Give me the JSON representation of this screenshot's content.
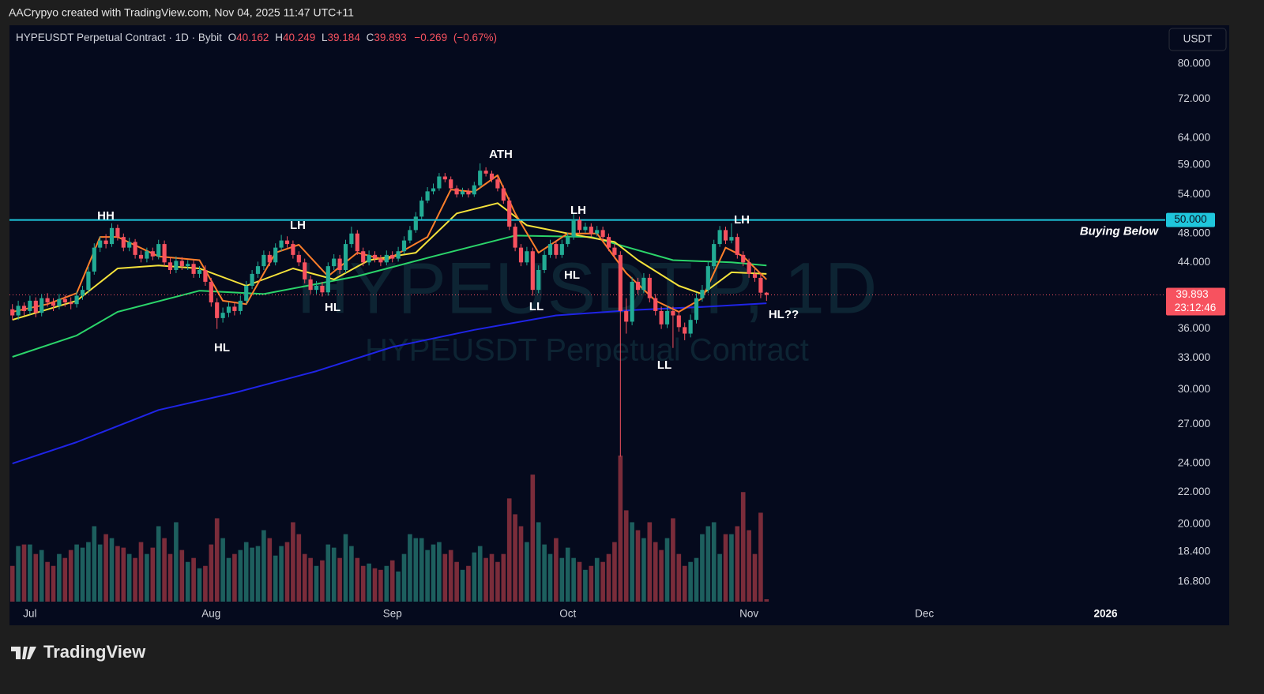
{
  "header": {
    "text": "AACrypyo created with TradingView.com, Nov 04, 2025 11:47 UTC+11"
  },
  "chart_data": {
    "type": "candlestick",
    "symbol": "HYPEUSDT Perpetual Contract · 1D · Bybit",
    "ohlc_legend": {
      "names": [
        "O",
        "H",
        "L",
        "C"
      ],
      "values": [
        40.162,
        40.249,
        39.184,
        39.893
      ]
    },
    "change": {
      "value": -0.269,
      "label": "−0.269"
    },
    "change_percent": {
      "value": -0.67,
      "label": "(−0.67%)"
    },
    "currency": "USDT",
    "watermark": [
      "HYPEUSDT.P, 1D",
      "HYPEUSDT Perpetual Contract"
    ],
    "up_color": "#22ab94",
    "down_color": "#f7525f",
    "volume_up_color": "#1d5f5e",
    "volume_down_color": "#7a2c3a",
    "x": [
      -3,
      -2,
      -1,
      0,
      1,
      2,
      3,
      4,
      5,
      6,
      7,
      8,
      9,
      10,
      11,
      12,
      13,
      14,
      15,
      16,
      17,
      18,
      19,
      20,
      21,
      22,
      23,
      24,
      25,
      26,
      27,
      28,
      29,
      30,
      31,
      32,
      33,
      34,
      35,
      36,
      37,
      38,
      39,
      40,
      41,
      42,
      43,
      44,
      45,
      46,
      47,
      48,
      49,
      50,
      51,
      52,
      53,
      54,
      55,
      56,
      57,
      58,
      59,
      60,
      61,
      62,
      63,
      64,
      65,
      66,
      67,
      68,
      69,
      70,
      71,
      72,
      73,
      74,
      75,
      76,
      77,
      78,
      79,
      80,
      81,
      82,
      83,
      84,
      85,
      86,
      87,
      88,
      89,
      90,
      91,
      92,
      93,
      94,
      95,
      96,
      97,
      98,
      99,
      100,
      101,
      102,
      103,
      104,
      105,
      106,
      107,
      108,
      109,
      110,
      111,
      112,
      113,
      114,
      115,
      116,
      117,
      118,
      119,
      120,
      121,
      122,
      123,
      124,
      125,
      126
    ],
    "ohlc": [
      [
        38.2,
        38.8,
        37.0,
        37.5
      ],
      [
        37.5,
        39.2,
        37.0,
        38.6
      ],
      [
        38.6,
        39.0,
        37.5,
        38.0
      ],
      [
        38.0,
        39.8,
        37.6,
        39.2
      ],
      [
        39.2,
        39.6,
        37.3,
        37.8
      ],
      [
        37.8,
        40.0,
        37.4,
        39.5
      ],
      [
        39.5,
        40.1,
        38.5,
        39.0
      ],
      [
        39.0,
        39.5,
        38.0,
        38.6
      ],
      [
        38.6,
        40.0,
        38.2,
        39.4
      ],
      [
        39.4,
        39.9,
        38.5,
        39.0
      ],
      [
        39.0,
        39.6,
        38.2,
        38.8
      ],
      [
        38.8,
        40.3,
        38.4,
        39.8
      ],
      [
        39.8,
        41.0,
        39.3,
        40.5
      ],
      [
        40.5,
        43.4,
        40.1,
        42.8
      ],
      [
        42.8,
        46.6,
        42.4,
        46.0
      ],
      [
        46.0,
        47.6,
        45.4,
        47.0
      ],
      [
        47.0,
        47.9,
        45.9,
        46.5
      ],
      [
        46.5,
        49.5,
        46.1,
        48.8
      ],
      [
        48.8,
        49.3,
        47.0,
        47.5
      ],
      [
        47.5,
        48.0,
        45.5,
        46.0
      ],
      [
        46.0,
        47.4,
        45.5,
        46.8
      ],
      [
        46.8,
        47.2,
        44.5,
        45.0
      ],
      [
        45.0,
        45.6,
        44.0,
        44.5
      ],
      [
        44.5,
        46.0,
        44.0,
        45.5
      ],
      [
        45.5,
        46.0,
        44.3,
        44.8
      ],
      [
        44.8,
        47.1,
        44.4,
        46.5
      ],
      [
        46.5,
        47.0,
        43.5,
        44.0
      ],
      [
        44.0,
        44.6,
        42.5,
        43.0
      ],
      [
        43.0,
        44.8,
        42.6,
        44.2
      ],
      [
        44.2,
        44.7,
        43.0,
        43.5
      ],
      [
        43.5,
        44.3,
        43.0,
        43.8
      ],
      [
        43.8,
        44.3,
        42.0,
        42.5
      ],
      [
        42.5,
        43.5,
        42.0,
        43.0
      ],
      [
        43.0,
        43.6,
        41.0,
        41.5
      ],
      [
        41.5,
        42.0,
        38.5,
        39.0
      ],
      [
        39.0,
        39.5,
        36.0,
        37.2
      ],
      [
        37.2,
        38.4,
        36.7,
        37.8
      ],
      [
        37.8,
        39.0,
        37.3,
        38.5
      ],
      [
        38.5,
        39.0,
        37.5,
        38.0
      ],
      [
        38.0,
        39.8,
        37.6,
        39.2
      ],
      [
        39.2,
        41.6,
        38.8,
        41.0
      ],
      [
        41.0,
        43.0,
        40.6,
        42.5
      ],
      [
        42.5,
        44.1,
        42.0,
        43.5
      ],
      [
        43.5,
        45.6,
        43.0,
        45.0
      ],
      [
        45.0,
        45.5,
        43.5,
        44.0
      ],
      [
        44.0,
        46.6,
        43.6,
        46.0
      ],
      [
        46.0,
        47.8,
        45.5,
        47.0
      ],
      [
        47.0,
        47.6,
        46.0,
        46.5
      ],
      [
        46.5,
        47.0,
        44.5,
        45.0
      ],
      [
        45.0,
        45.5,
        43.5,
        44.0
      ],
      [
        44.0,
        44.5,
        41.3,
        41.8
      ],
      [
        41.8,
        42.3,
        40.0,
        40.5
      ],
      [
        40.5,
        41.6,
        40.0,
        41.0
      ],
      [
        41.0,
        41.5,
        39.7,
        40.2
      ],
      [
        40.2,
        44.0,
        39.8,
        43.5
      ],
      [
        43.5,
        45.1,
        43.0,
        44.5
      ],
      [
        44.5,
        45.0,
        42.5,
        43.0
      ],
      [
        43.0,
        47.1,
        42.6,
        46.5
      ],
      [
        46.5,
        49.0,
        46.0,
        48.0
      ],
      [
        48.0,
        48.5,
        45.0,
        45.5
      ],
      [
        45.5,
        46.0,
        43.5,
        44.0
      ],
      [
        44.0,
        45.6,
        43.6,
        45.0
      ],
      [
        45.0,
        45.5,
        44.0,
        44.5
      ],
      [
        44.5,
        45.0,
        43.5,
        44.0
      ],
      [
        44.0,
        45.6,
        43.6,
        45.0
      ],
      [
        45.0,
        45.5,
        44.0,
        44.5
      ],
      [
        44.5,
        46.1,
        44.1,
        45.5
      ],
      [
        45.5,
        47.6,
        45.1,
        47.0
      ],
      [
        47.0,
        49.1,
        46.6,
        48.5
      ],
      [
        48.5,
        51.2,
        48.1,
        50.5
      ],
      [
        50.5,
        53.6,
        50.1,
        53.0
      ],
      [
        53.0,
        55.2,
        52.6,
        54.5
      ],
      [
        54.5,
        55.8,
        54.0,
        55.0
      ],
      [
        55.0,
        57.6,
        54.6,
        57.0
      ],
      [
        57.0,
        57.6,
        56.0,
        56.5
      ],
      [
        56.5,
        57.0,
        54.5,
        55.0
      ],
      [
        55.0,
        55.5,
        53.5,
        54.0
      ],
      [
        54.0,
        55.1,
        53.6,
        54.5
      ],
      [
        54.5,
        55.0,
        53.5,
        54.0
      ],
      [
        54.0,
        56.1,
        53.6,
        55.5
      ],
      [
        55.5,
        59.3,
        55.1,
        58.0
      ],
      [
        58.0,
        58.6,
        57.0,
        57.5
      ],
      [
        57.5,
        58.0,
        56.0,
        56.5
      ],
      [
        56.5,
        57.0,
        54.5,
        55.0
      ],
      [
        55.0,
        55.5,
        52.5,
        53.0
      ],
      [
        53.0,
        53.5,
        48.5,
        49.0
      ],
      [
        49.0,
        49.5,
        45.5,
        46.0
      ],
      [
        46.0,
        46.5,
        43.5,
        44.0
      ],
      [
        44.0,
        46.1,
        43.6,
        45.5
      ],
      [
        45.5,
        46.0,
        39.8,
        40.5
      ],
      [
        40.5,
        43.6,
        40.1,
        43.0
      ],
      [
        43.0,
        45.6,
        42.6,
        45.0
      ],
      [
        45.0,
        47.1,
        44.6,
        46.5
      ],
      [
        46.5,
        47.0,
        44.5,
        45.0
      ],
      [
        45.0,
        47.1,
        44.6,
        46.5
      ],
      [
        46.5,
        48.1,
        46.1,
        47.5
      ],
      [
        47.5,
        51.0,
        47.1,
        50.0
      ],
      [
        50.0,
        50.5,
        48.0,
        48.5
      ],
      [
        48.5,
        49.6,
        48.1,
        49.0
      ],
      [
        49.0,
        49.5,
        47.5,
        48.0
      ],
      [
        48.0,
        49.1,
        47.6,
        48.5
      ],
      [
        48.5,
        49.0,
        47.0,
        47.5
      ],
      [
        47.5,
        48.0,
        45.5,
        46.0
      ],
      [
        46.0,
        46.5,
        44.5,
        45.0
      ],
      [
        45.0,
        45.5,
        24.5,
        38.0
      ],
      [
        38.0,
        39.5,
        35.5,
        36.8
      ],
      [
        36.8,
        42.1,
        36.4,
        41.5
      ],
      [
        41.5,
        42.0,
        40.0,
        40.5
      ],
      [
        40.5,
        42.6,
        40.1,
        42.0
      ],
      [
        42.0,
        42.5,
        39.0,
        39.5
      ],
      [
        39.5,
        40.0,
        37.5,
        38.0
      ],
      [
        38.0,
        38.5,
        36.0,
        36.5
      ],
      [
        36.5,
        38.6,
        36.1,
        38.0
      ],
      [
        38.0,
        38.5,
        34.0,
        37.5
      ],
      [
        37.5,
        38.0,
        35.7,
        36.2
      ],
      [
        36.2,
        36.7,
        34.8,
        35.5
      ],
      [
        35.5,
        37.6,
        35.1,
        37.0
      ],
      [
        37.0,
        40.1,
        36.6,
        39.5
      ],
      [
        39.5,
        41.1,
        39.1,
        40.5
      ],
      [
        40.5,
        44.1,
        40.1,
        43.5
      ],
      [
        43.5,
        47.1,
        43.1,
        46.5
      ],
      [
        46.5,
        49.1,
        46.1,
        48.5
      ],
      [
        48.5,
        49.0,
        46.5,
        47.0
      ],
      [
        47.0,
        49.5,
        46.6,
        47.5
      ],
      [
        47.5,
        48.0,
        44.5,
        45.0
      ],
      [
        45.0,
        45.5,
        43.5,
        44.0
      ],
      [
        44.0,
        44.5,
        42.0,
        42.5
      ],
      [
        42.5,
        43.2,
        41.5,
        42.0
      ],
      [
        42.0,
        42.5,
        39.5,
        40.162
      ],
      [
        40.162,
        40.249,
        39.184,
        39.893
      ]
    ],
    "volume": [
      45,
      70,
      72,
      72,
      60,
      65,
      50,
      45,
      60,
      55,
      65,
      72,
      68,
      75,
      95,
      72,
      85,
      80,
      70,
      68,
      60,
      55,
      75,
      60,
      68,
      95,
      80,
      60,
      100,
      65,
      50,
      55,
      42,
      45,
      72,
      105,
      80,
      55,
      60,
      65,
      75,
      68,
      70,
      90,
      80,
      58,
      70,
      75,
      100,
      85,
      60,
      55,
      45,
      52,
      72,
      68,
      55,
      85,
      70,
      55,
      45,
      48,
      42,
      40,
      45,
      52,
      38,
      60,
      85,
      80,
      80,
      65,
      72,
      75,
      60,
      65,
      50,
      40,
      45,
      62,
      70,
      55,
      60,
      50,
      60,
      130,
      110,
      95,
      75,
      160,
      100,
      72,
      60,
      80,
      55,
      68,
      55,
      50,
      40,
      45,
      55,
      50,
      60,
      75,
      184,
      115,
      100,
      90,
      80,
      100,
      75,
      65,
      80,
      105,
      60,
      45,
      50,
      55,
      85,
      95,
      100,
      60,
      85,
      85,
      95,
      138,
      90,
      60,
      112,
      3
    ],
    "moving_averages": [
      {
        "color": "#1f24e6",
        "x": [
          -3,
          8,
          22,
          35,
          49,
          62,
          76,
          90,
          103,
          116,
          126
        ],
        "values": [
          24.0,
          25.6,
          28.2,
          29.7,
          31.7,
          34.1,
          35.9,
          37.5,
          38.1,
          38.5,
          38.9
        ]
      },
      {
        "color": "#2bd46a",
        "x": [
          -3,
          8,
          15,
          29,
          40,
          56,
          69,
          83,
          96,
          110,
          120,
          126
        ],
        "values": [
          33.1,
          35.3,
          37.9,
          40.4,
          40.0,
          42.2,
          44.8,
          47.7,
          47.5,
          44.3,
          44.0,
          43.6
        ]
      },
      {
        "color": "#f5e23b",
        "x": [
          -3,
          8,
          15,
          22,
          29,
          37,
          45,
          52,
          58,
          66,
          73,
          80,
          85,
          92,
          100,
          104,
          111,
          115,
          120,
          126
        ],
        "values": [
          37.0,
          39.2,
          43.2,
          43.6,
          43.2,
          41.0,
          43.2,
          41.8,
          44.3,
          45.3,
          51.0,
          52.6,
          49.2,
          48.0,
          46.8,
          44.3,
          41.0,
          40.0,
          42.7,
          42.5
        ]
      },
      {
        "color": "#ff7f2a",
        "x": [
          -3,
          3,
          8,
          12,
          15,
          22,
          29,
          33,
          37,
          42,
          46,
          51,
          56,
          61,
          68,
          72,
          76,
          80,
          83,
          87,
          92,
          97,
          102,
          107,
          111,
          115,
          119,
          122,
          126
        ],
        "values": [
          37.9,
          38.8,
          40.1,
          47.5,
          47.5,
          44.8,
          44.3,
          39.2,
          38.8,
          45.3,
          46.4,
          42.2,
          45.3,
          44.3,
          47.5,
          54.8,
          54.4,
          57.2,
          51.0,
          45.3,
          48.0,
          48.0,
          42.6,
          39.2,
          37.9,
          39.5,
          46.0,
          44.8,
          41.8
        ]
      }
    ],
    "xlim": [
      -3.5,
      194.2
    ],
    "xticks": [
      {
        "value": 0,
        "label": "Jul"
      },
      {
        "value": 31,
        "label": "Aug"
      },
      {
        "value": 62,
        "label": "Sep"
      },
      {
        "value": 92,
        "label": "Oct"
      },
      {
        "value": 123,
        "label": "Nov"
      },
      {
        "value": 153,
        "label": "Dec"
      },
      {
        "value": 184,
        "label": "2026"
      }
    ],
    "ylim": [
      15.83,
      89.9
    ],
    "log_scale": true,
    "yticks": [
      {
        "value": 80,
        "label": "80.000"
      },
      {
        "value": 72,
        "label": "72.000"
      },
      {
        "value": 64,
        "label": "64.000"
      },
      {
        "value": 59,
        "label": "59.000"
      },
      {
        "value": 54,
        "label": "54.000"
      },
      {
        "value": 48,
        "label": "48.000"
      },
      {
        "value": 44,
        "label": "44.000"
      },
      {
        "value": 36,
        "label": "36.000"
      },
      {
        "value": 33,
        "label": "33.000"
      },
      {
        "value": 30,
        "label": "30.000"
      },
      {
        "value": 27,
        "label": "27.000"
      },
      {
        "value": 24,
        "label": "24.000"
      },
      {
        "value": 22,
        "label": "22.000"
      },
      {
        "value": 20,
        "label": "20.000"
      },
      {
        "value": 18.4,
        "label": "18.400"
      },
      {
        "value": 16.8,
        "label": "16.800"
      }
    ],
    "level": {
      "value": 50,
      "label": "50.000",
      "color": "#1fc6dc",
      "text": "Buying Below"
    },
    "last_price": 39.893,
    "countdown": "23:12:46",
    "annotations": [
      "HH",
      "HL",
      "LH",
      "HL",
      "ATH",
      "LL",
      "LH",
      "HL",
      "LH",
      "LL",
      "HL??"
    ]
  },
  "footer": {
    "logo": "TradingView"
  }
}
